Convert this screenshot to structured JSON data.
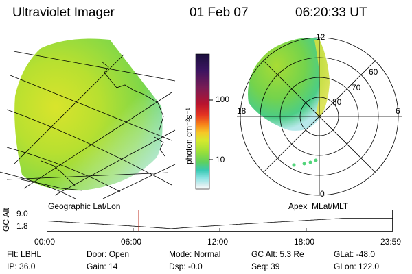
{
  "header": {
    "instrument": "Ultraviolet Imager",
    "date": "01 Feb 07",
    "time": "06:20:33 UT"
  },
  "colorbar": {
    "label": "photon cm⁻²s⁻¹",
    "ticks": [
      "100",
      "10"
    ],
    "colors": [
      "#1a0f3c",
      "#3b1460",
      "#7a1c55",
      "#b8142e",
      "#e43321",
      "#f7821a",
      "#f7c627",
      "#d6e92e",
      "#9fe038",
      "#5fd05c",
      "#39c9b4",
      "#8fe4e4",
      "#d8eef0",
      "#ffffff"
    ]
  },
  "geo_panel": {
    "label": "Geographic Lat/Lon"
  },
  "polar_panel": {
    "label": "Apex  MLat/MLT",
    "lat_labels": [
      "60",
      "70",
      "80"
    ],
    "mlt_labels": [
      "12",
      "18",
      "6",
      "0"
    ]
  },
  "orbit_plot": {
    "ylabel": "GC Alt",
    "ymax": "9.0",
    "ymin": "1.8",
    "xticks": [
      "00:00",
      "06:00",
      "12:00",
      "18:00",
      "23:59"
    ],
    "current_time_hours": 6.34
  },
  "info": {
    "filter_label": "Flt:",
    "filter_value": "LBHL",
    "ip_label": "IP:",
    "ip_value": "36.0",
    "door_label": "Door:",
    "door_value": "Open",
    "gain_label": "Gain:",
    "gain_value": "14",
    "mode_label": "Mode:",
    "mode_value": "Normal",
    "dsp_label": "Dsp:",
    "dsp_value": "-0.0",
    "gcalt_label": "GC Alt:",
    "gcalt_value": "5.3 Re",
    "seq_label": "Seq:",
    "seq_value": "39",
    "glat_label": "GLat:",
    "glat_value": "-48.0",
    "glon_label": "GLon:",
    "glon_value": "122.0"
  }
}
